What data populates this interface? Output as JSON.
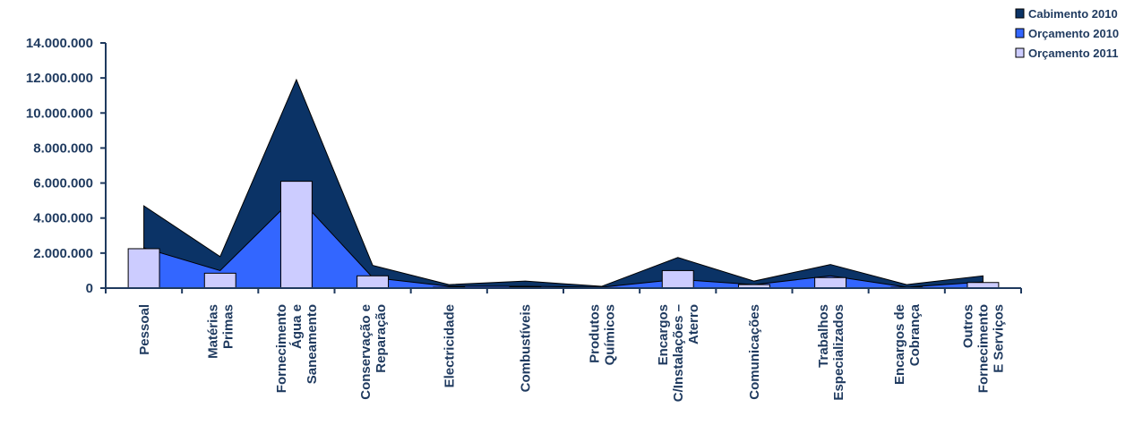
{
  "chart_data": {
    "type": "area",
    "title": "",
    "xlabel": "",
    "ylabel": "",
    "ylim": [
      0,
      14000000
    ],
    "yticks": [
      0,
      2000000,
      4000000,
      6000000,
      8000000,
      10000000,
      12000000,
      14000000
    ],
    "ytick_labels": [
      "0",
      "2.000.000",
      "4.000.000",
      "6.000.000",
      "8.000.000",
      "10.000.000",
      "12.000.000",
      "14.000.000"
    ],
    "grid": false,
    "legend_position": "top-right",
    "categories": [
      [
        "Pessoal"
      ],
      [
        "Matérias",
        "Primas"
      ],
      [
        "Fornecimento",
        "Água e",
        "Saneamento"
      ],
      [
        "Conservação e",
        "Reparação"
      ],
      [
        "Electricidade"
      ],
      [
        "Combustíveis"
      ],
      [
        "Produtos",
        "Químicos"
      ],
      [
        "Encargos",
        "C/Instalações –",
        "Aterro"
      ],
      [
        "Comunicações"
      ],
      [
        "Trabalhos",
        "Especializados"
      ],
      [
        "Encargos de",
        "Cobrança"
      ],
      [
        "Outros",
        "Fornecimento",
        "E Serviços"
      ]
    ],
    "series": [
      {
        "name": "Cabimento 2010",
        "kind": "area",
        "color": "#0b3366",
        "values": [
          4700000,
          1800000,
          11900000,
          1300000,
          200000,
          400000,
          100000,
          1750000,
          400000,
          1350000,
          200000,
          700000
        ]
      },
      {
        "name": "Orçamento 2010",
        "kind": "area",
        "color": "#3366ff",
        "values": [
          2300000,
          1000000,
          5300000,
          600000,
          100000,
          100000,
          50000,
          500000,
          200000,
          700000,
          50000,
          350000
        ]
      },
      {
        "name": "Orçamento 2011",
        "kind": "bar",
        "color": "#ccccff",
        "values": [
          2250000,
          850000,
          6100000,
          700000,
          50000,
          50000,
          30000,
          1000000,
          200000,
          600000,
          50000,
          320000
        ]
      }
    ]
  }
}
